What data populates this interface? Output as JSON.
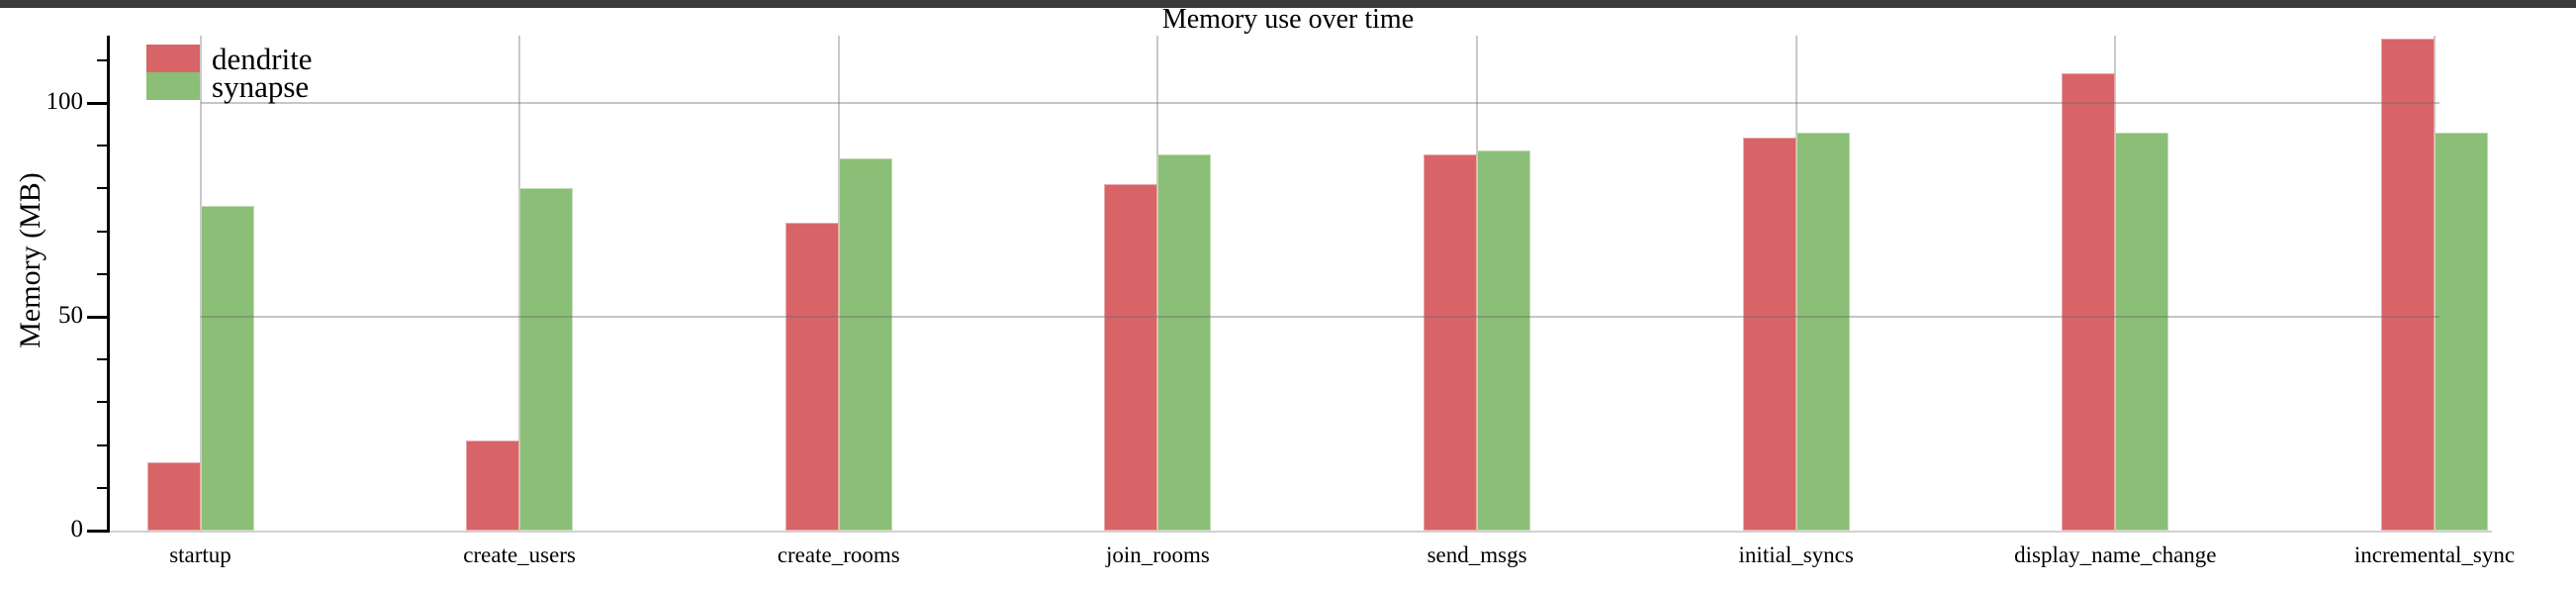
{
  "window": {
    "topbar_color": "#3b3b3e"
  },
  "chart_data": {
    "type": "bar",
    "title": "Memory use over time",
    "xlabel": "",
    "ylabel": "Memory (MB)",
    "categories": [
      "startup",
      "create_users",
      "create_rooms",
      "join_rooms",
      "send_msgs",
      "initial_syncs",
      "display_name_change",
      "incremental_sync"
    ],
    "series": [
      {
        "name": "dendrite",
        "color": "#d86468",
        "values": [
          16,
          21,
          72,
          81,
          88,
          92,
          107,
          115
        ]
      },
      {
        "name": "synapse",
        "color": "#8bbe76",
        "values": [
          76,
          80,
          87,
          88,
          89,
          93,
          93,
          93
        ]
      }
    ],
    "yticks": [
      0,
      50,
      100
    ],
    "ytick_labels": [
      "0",
      "50",
      "100"
    ],
    "minor_yticks": [
      10,
      20,
      30,
      40,
      60,
      70,
      80,
      90,
      110
    ],
    "ylim": [
      0,
      115.7
    ],
    "grid": true,
    "legend_position": "upper-left"
  }
}
